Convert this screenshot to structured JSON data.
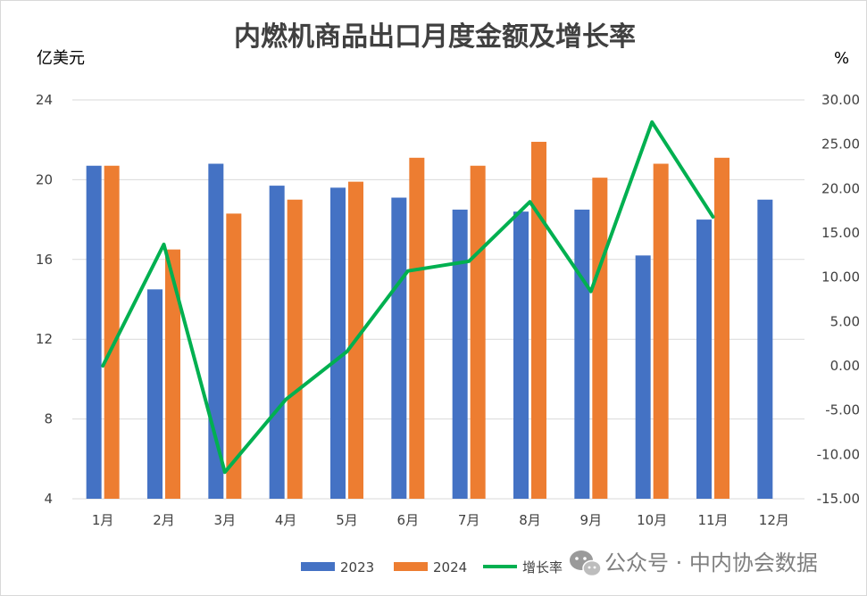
{
  "chart_data": {
    "type": "bar",
    "title": "内燃机商品出口月度金额及增长率",
    "y_left_unit": "亿美元",
    "y_right_unit": "%",
    "categories": [
      "1月",
      "2月",
      "3月",
      "4月",
      "5月",
      "6月",
      "7月",
      "8月",
      "9月",
      "10月",
      "11月",
      "12月"
    ],
    "y_left_ticks": [
      "4",
      "8",
      "12",
      "16",
      "20",
      "24"
    ],
    "y_left_range": [
      4,
      24
    ],
    "y_right_ticks": [
      "-15.00",
      "-10.00",
      "-5.00",
      "0.00",
      "5.00",
      "10.00",
      "15.00",
      "20.00",
      "25.00",
      "30.00"
    ],
    "y_right_range": [
      -15,
      30
    ],
    "grid": true,
    "legend_position": "bottom",
    "series": [
      {
        "name": "2023",
        "type": "bar",
        "axis": "left",
        "color": "#4472C4",
        "values": [
          20.7,
          14.5,
          20.8,
          19.7,
          19.6,
          19.1,
          18.5,
          18.4,
          18.5,
          16.2,
          18.0,
          19.0
        ]
      },
      {
        "name": "2024",
        "type": "bar",
        "axis": "left",
        "color": "#ED7D31",
        "values": [
          20.7,
          16.5,
          18.3,
          19.0,
          19.9,
          21.1,
          20.7,
          21.9,
          20.1,
          20.8,
          21.1,
          null
        ]
      },
      {
        "name": "增长率",
        "type": "line",
        "axis": "right",
        "color": "#00B050",
        "values": [
          0.0,
          13.7,
          -12.0,
          -3.8,
          1.6,
          10.7,
          11.8,
          18.5,
          8.4,
          27.5,
          16.8,
          null
        ]
      }
    ]
  },
  "watermark": {
    "icon": "wechat-icon",
    "text": "公众号 · 中内协会数据"
  }
}
